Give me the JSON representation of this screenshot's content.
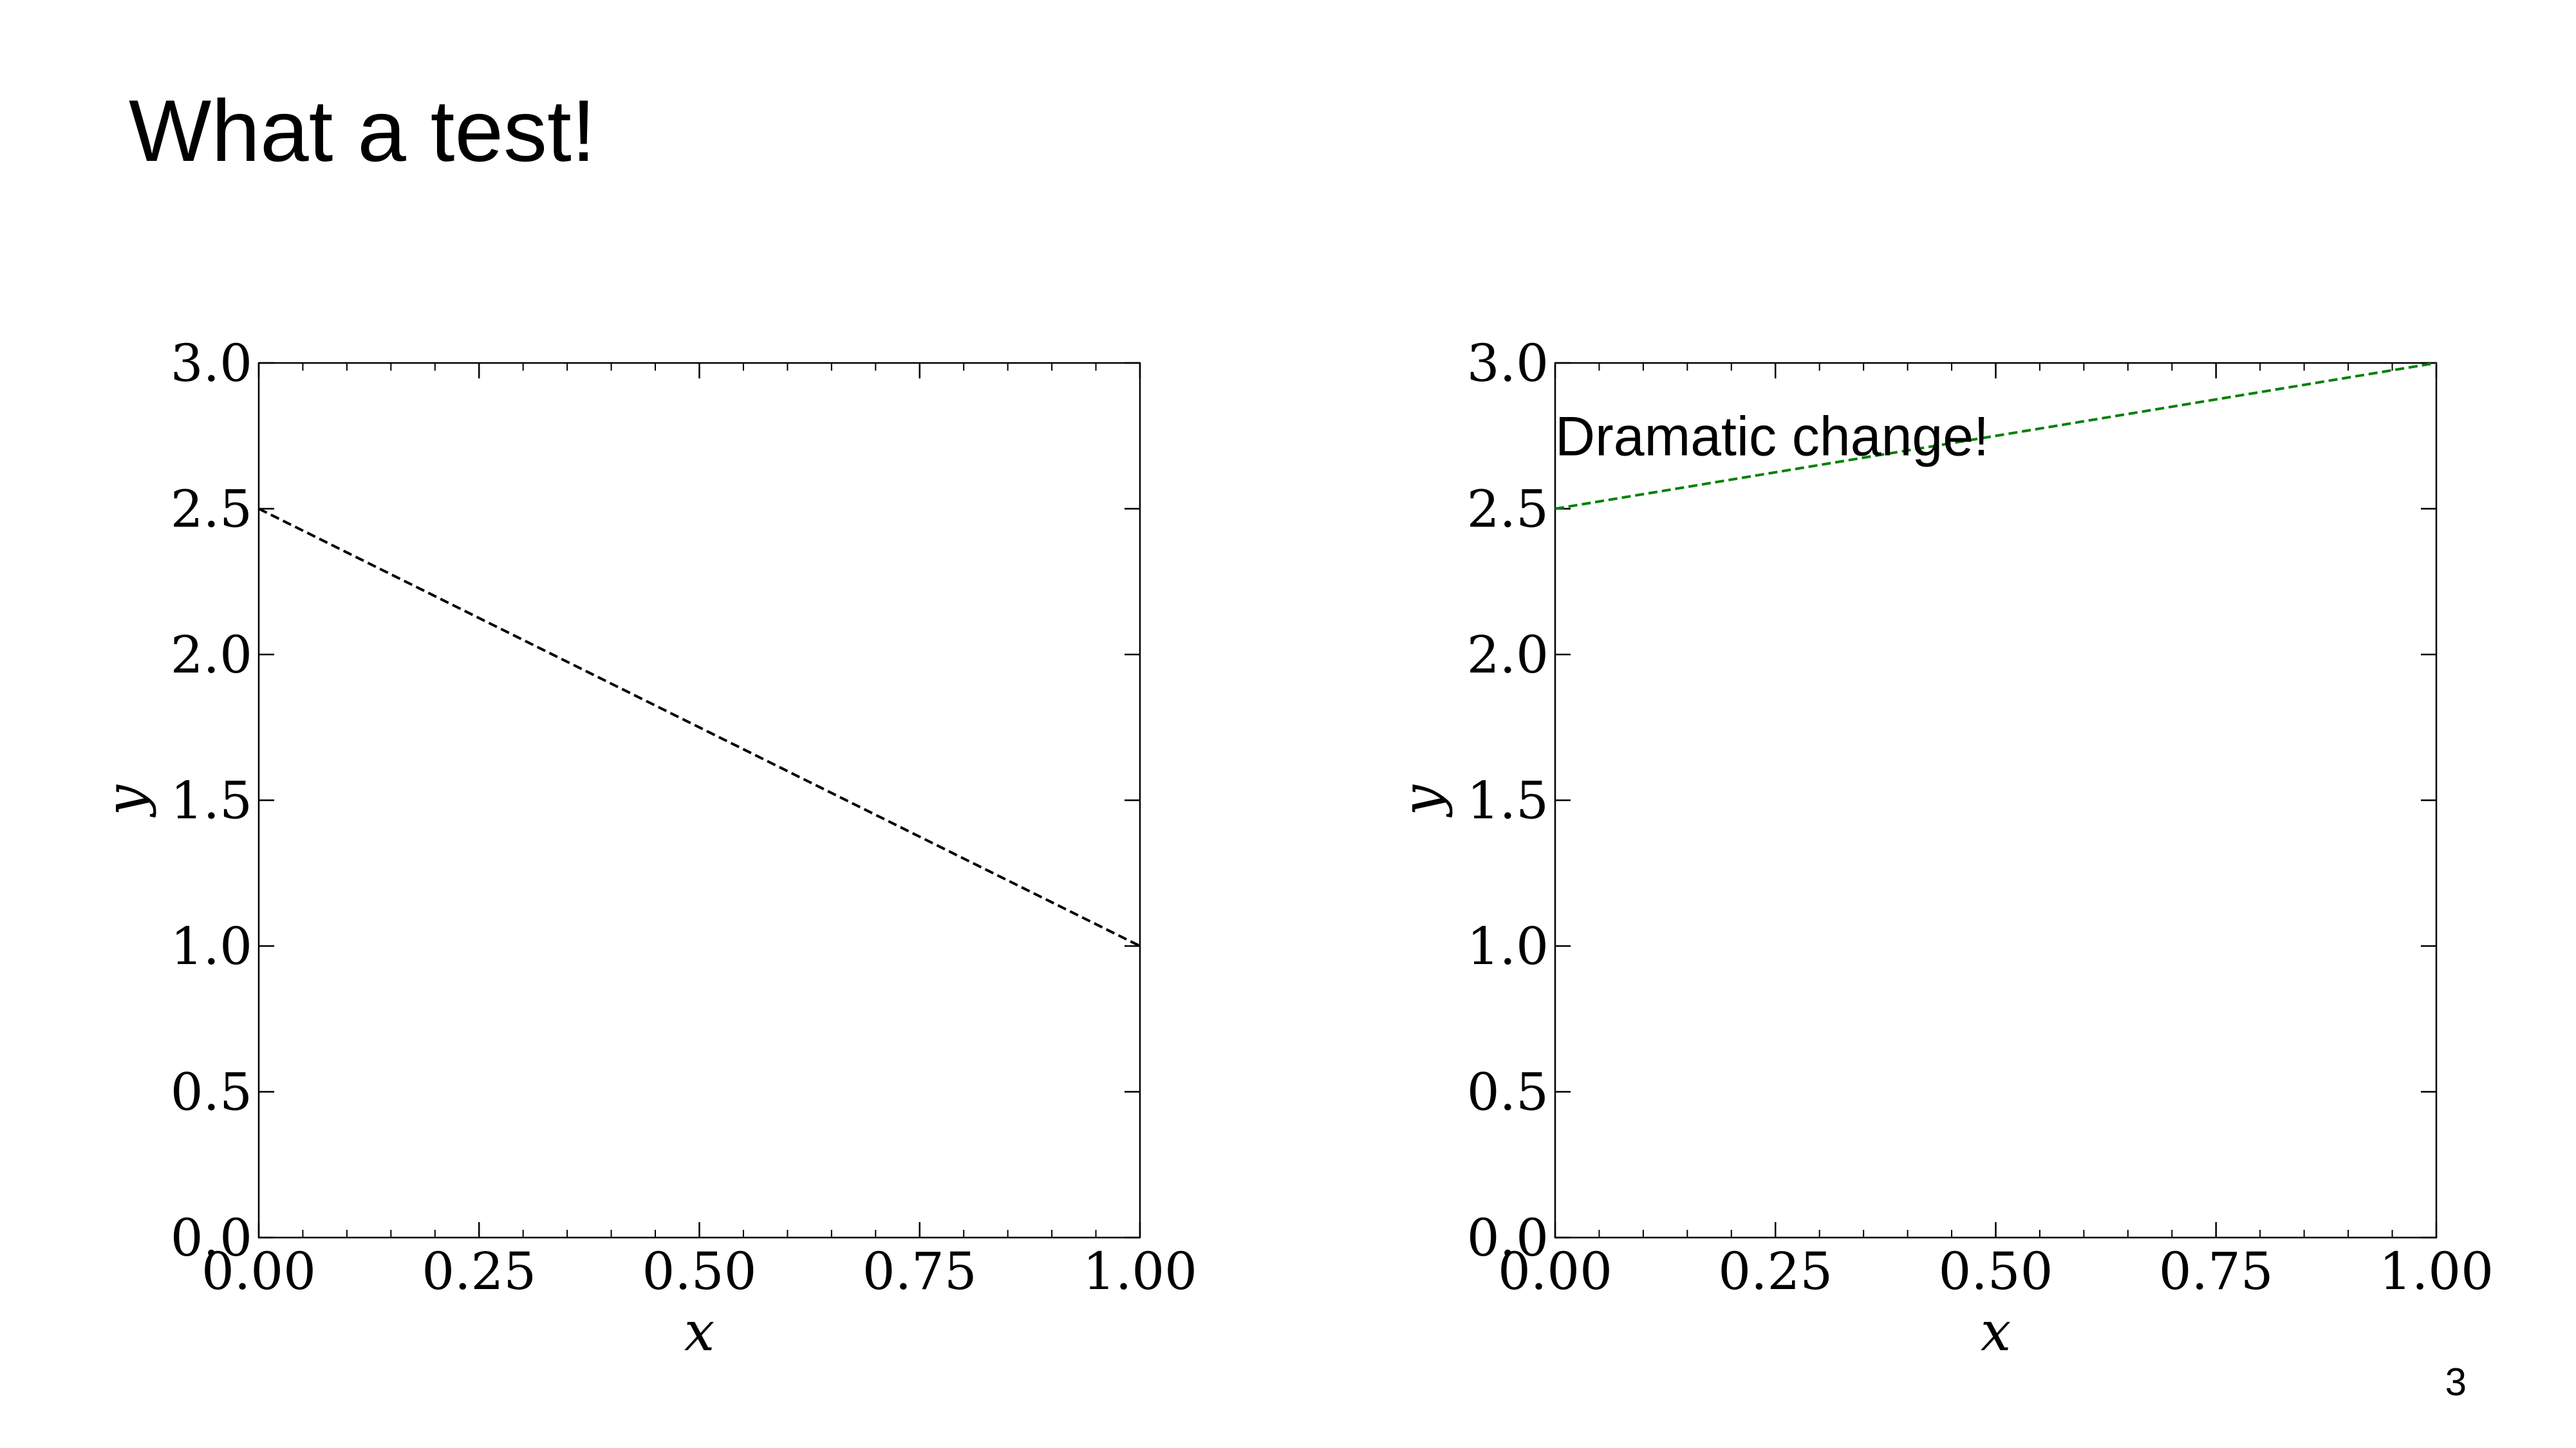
{
  "slide": {
    "title": "What a test!",
    "page_number": "3"
  },
  "chart_data": [
    {
      "type": "line",
      "xlabel": "x",
      "ylabel": "y",
      "xlim": [
        0.0,
        1.0
      ],
      "ylim": [
        0.0,
        3.0
      ],
      "xticks": [
        "0.00",
        "0.25",
        "0.50",
        "0.75",
        "1.00"
      ],
      "yticks": [
        "0.0",
        "0.5",
        "1.0",
        "1.5",
        "2.0",
        "2.5",
        "3.0"
      ],
      "xtick_values": [
        0.0,
        0.25,
        0.5,
        0.75,
        1.0
      ],
      "ytick_values": [
        0.0,
        0.5,
        1.0,
        1.5,
        2.0,
        2.5,
        3.0
      ],
      "series": [
        {
          "x": [
            0.0,
            1.0
          ],
          "y": [
            2.5,
            1.0
          ],
          "color": "#000000",
          "linestyle": "dashed"
        }
      ],
      "annotations": [],
      "grid": false
    },
    {
      "type": "line",
      "xlabel": "x",
      "ylabel": "y",
      "xlim": [
        0.0,
        1.0
      ],
      "ylim": [
        0.0,
        3.0
      ],
      "xticks": [
        "0.00",
        "0.25",
        "0.50",
        "0.75",
        "1.00"
      ],
      "yticks": [
        "0.0",
        "0.5",
        "1.0",
        "1.5",
        "2.0",
        "2.5",
        "3.0"
      ],
      "xtick_values": [
        0.0,
        0.25,
        0.5,
        0.75,
        1.0
      ],
      "ytick_values": [
        0.0,
        0.5,
        1.0,
        1.5,
        2.0,
        2.5,
        3.0
      ],
      "series": [
        {
          "x": [
            0.0,
            1.0
          ],
          "y": [
            2.5,
            3.0
          ],
          "color": "#008000",
          "linestyle": "dashed"
        }
      ],
      "annotations": [
        {
          "text": "Dramatic change!",
          "x": 0.0,
          "y": 2.75
        }
      ],
      "grid": false
    }
  ]
}
